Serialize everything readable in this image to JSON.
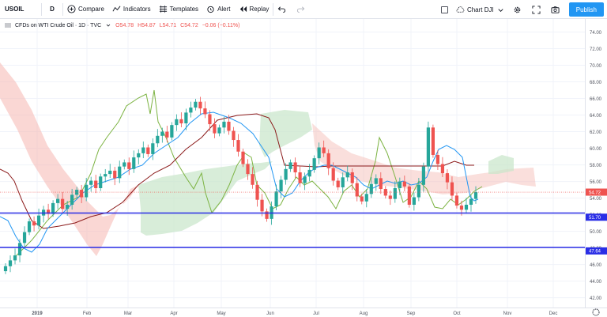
{
  "toolbar": {
    "symbol": "USOIL",
    "interval": "D",
    "compare": "Compare",
    "indicators": "Indicators",
    "templates": "Templates",
    "alert": "Alert",
    "replay": "Replay",
    "chart_name": "Chart DJI",
    "publish": "Publish"
  },
  "legend": {
    "title": "CFDs on WTI Crude Oil · 1D · TVC",
    "open": "O54.78",
    "high": "H54.87",
    "low": "L54.71",
    "close": "C54.72",
    "change": "−0.06 (−0.11%)"
  },
  "chart_data": {
    "type": "candlestick",
    "y_ticks": [
      "74.00",
      "72.00",
      "70.00",
      "68.00",
      "66.00",
      "64.00",
      "62.00",
      "60.00",
      "58.00",
      "56.00",
      "54.00",
      "52.00",
      "50.00",
      "48.00",
      "46.00",
      "44.00",
      "42.00"
    ],
    "x_ticks": [
      "2019",
      "Feb",
      "Mar",
      "Apr",
      "May",
      "Jun",
      "Jul",
      "Aug",
      "Sep",
      "Oct",
      "Nov",
      "Dec"
    ],
    "ylim": [
      41.3,
      75.0
    ],
    "price_labels": [
      {
        "text": "54.72",
        "value": 54.72,
        "color": "#ef5350"
      },
      {
        "text": "51.70",
        "value": 51.7,
        "color": "#2a2ee6"
      },
      {
        "text": "47.64",
        "value": 47.64,
        "color": "#2a2ee6"
      }
    ],
    "horizontal_lines": [
      51.7,
      47.64
    ],
    "series": [
      {
        "name": "closes",
        "values": [
          45.8,
          46.5,
          47.1,
          48.6,
          49.9,
          51.2,
          50.7,
          51.9,
          52.6,
          52.1,
          53.4,
          53.9,
          52.7,
          53.2,
          54.4,
          55.0,
          54.1,
          55.6,
          56.1,
          55.2,
          56.6,
          56.9,
          57.3,
          56.4,
          57.8,
          58.3,
          57.5,
          58.9,
          59.4,
          60.1,
          59.3,
          60.6,
          61.5,
          62.0,
          61.3,
          62.8,
          63.5,
          63.0,
          64.3,
          64.9,
          65.6,
          64.8,
          64.1,
          62.9,
          61.8,
          62.5,
          63.2,
          62.1,
          61.0,
          59.6,
          58.1,
          56.9,
          55.6,
          53.8,
          52.4,
          51.5,
          53.0,
          54.8,
          56.2,
          57.5,
          58.3,
          57.1,
          55.8,
          56.6,
          57.4,
          58.8,
          60.1,
          59.4,
          57.6,
          56.1,
          55.3,
          56.5,
          57.1,
          55.8,
          54.2,
          53.6,
          54.5,
          55.7,
          56.4,
          55.1,
          54.3,
          53.9,
          55.2,
          56.0,
          55.4,
          53.2,
          54.1,
          55.6,
          57.8,
          62.5,
          59.2,
          58.1,
          57.0,
          55.9,
          54.3,
          53.1,
          52.6,
          53.2,
          53.9,
          54.72
        ]
      }
    ]
  }
}
